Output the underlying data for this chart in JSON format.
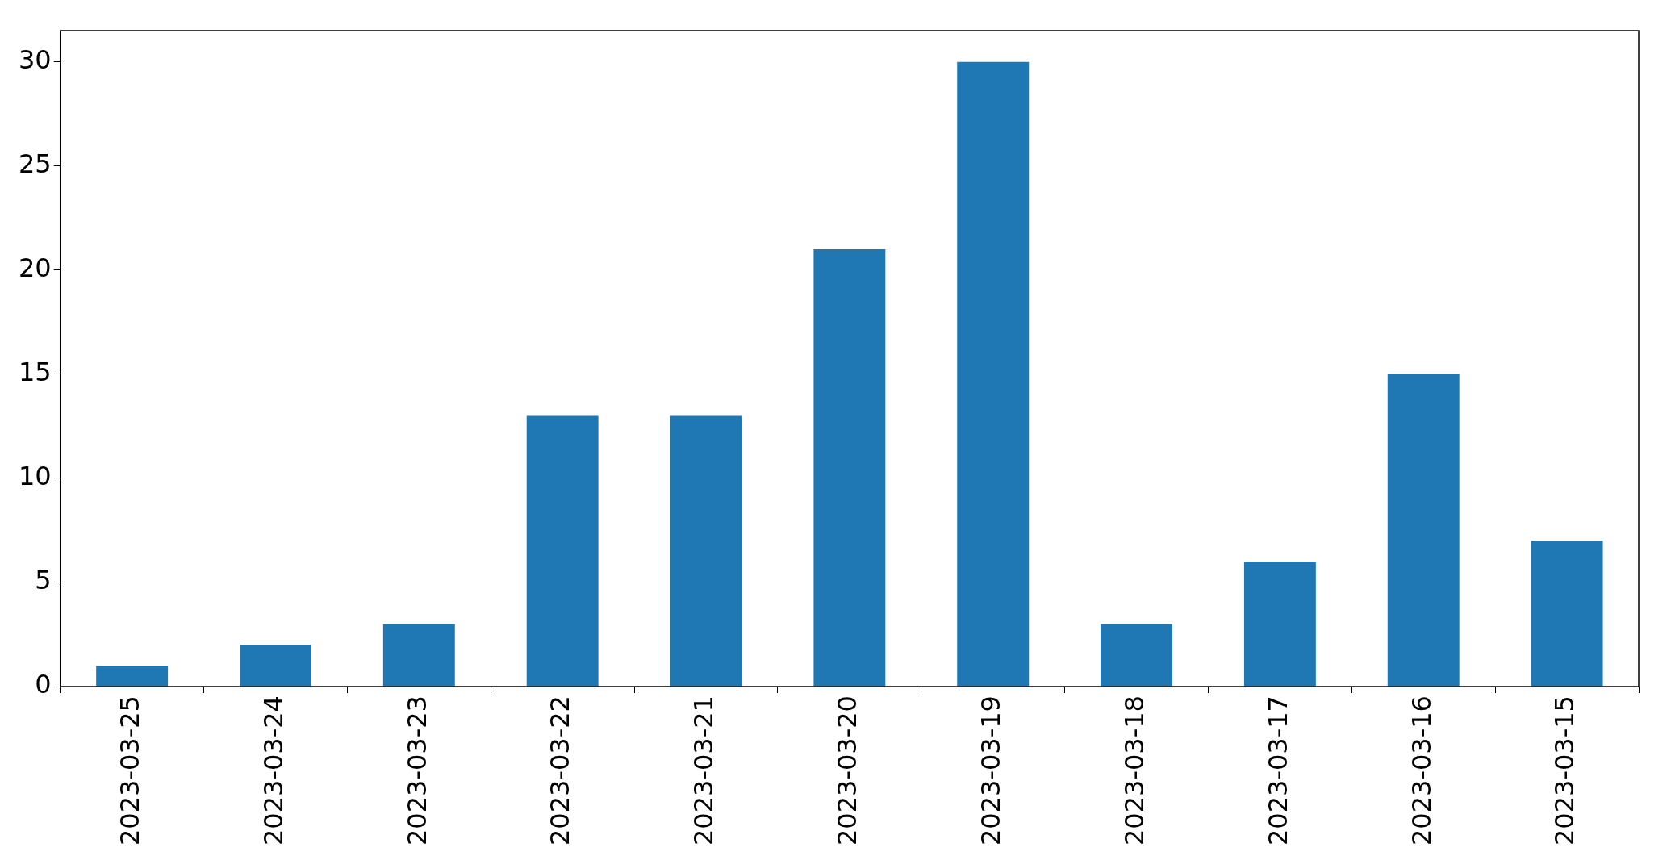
{
  "chart_data": {
    "type": "bar",
    "categories": [
      "2023-03-25",
      "2023-03-24",
      "2023-03-23",
      "2023-03-22",
      "2023-03-21",
      "2023-03-20",
      "2023-03-19",
      "2023-03-18",
      "2023-03-17",
      "2023-03-16",
      "2023-03-15"
    ],
    "values": [
      1,
      2,
      3,
      13,
      13,
      21,
      30,
      3,
      6,
      15,
      7
    ],
    "color": "#1f77b4",
    "ylim": [
      0,
      31.5
    ],
    "yticks": [
      0,
      5,
      10,
      15,
      20,
      25,
      30
    ],
    "grid": false,
    "legend": false
  }
}
